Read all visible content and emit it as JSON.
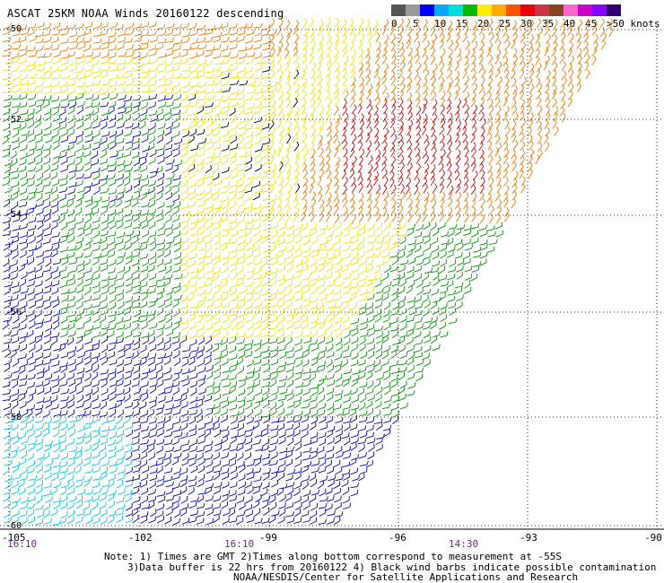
{
  "title": "ASCAT 25KM NOAA Winds 20160122 descending",
  "colorbar": {
    "colors": [
      "#555555",
      "#999999",
      "#0000ff",
      "#00aaff",
      "#00dddd",
      "#00bb00",
      "#ffee00",
      "#ffaa00",
      "#ff5500",
      "#ee0000",
      "#cc3344",
      "#884422",
      "#ff66cc",
      "#cc00cc",
      "#8800ff",
      "#330077"
    ],
    "labels": [
      "0",
      "5",
      "10",
      "15",
      "20",
      "25",
      "30",
      "35",
      "40",
      "45",
      ">50 knots"
    ]
  },
  "lat_labels": [
    "-50",
    "-52",
    "-54",
    "-56",
    "-58",
    "-60"
  ],
  "lon_labels": [
    "-105",
    "-102",
    "-99",
    "-96",
    "-93",
    "-90"
  ],
  "time_labels": [
    "16:10",
    "16:10",
    "14:30"
  ],
  "notes": [
    "Note: 1) Times are GMT 2)Times along bottom correspond to measurement at -55S",
    "3)Data buffer is 22 hrs from 20160122 4) Black wind barbs indicate possible contamination",
    "NOAA/NESDIS/Center for Satellite Applications and Research"
  ],
  "speed_colors": {
    "cyan": "#00ccee",
    "blue": "#0000cc",
    "green": "#009900",
    "yellow": "#ffdd00",
    "orange": "#ff7700",
    "red": "#dd0000",
    "black": "#000000"
  }
}
